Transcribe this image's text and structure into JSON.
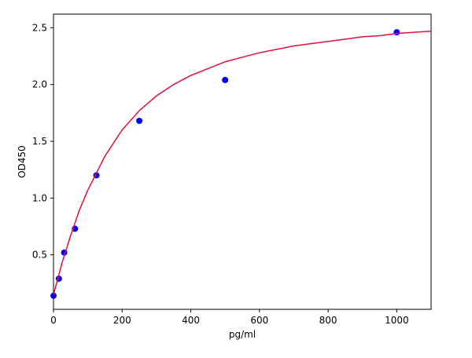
{
  "chart_data": {
    "type": "scatter",
    "title": "",
    "xlabel": "pg/ml",
    "ylabel": "OD450",
    "xlim": [
      0,
      1100
    ],
    "ylim": [
      0.02,
      2.62
    ],
    "x_ticks": [
      0,
      200,
      400,
      600,
      800,
      1000
    ],
    "x_tick_labels": [
      "0",
      "200",
      "400",
      "600",
      "800",
      "1000"
    ],
    "y_ticks": [
      0.5,
      1.0,
      1.5,
      2.0,
      2.5
    ],
    "y_tick_labels": [
      "0.5",
      "1.0",
      "1.5",
      "2.0",
      "2.5"
    ],
    "grid": false,
    "legend": "none",
    "series": [
      {
        "kind": "points",
        "color": "#0000ff",
        "x": [
          0,
          15.6,
          31.2,
          62.5,
          125,
          250,
          500,
          1000
        ],
        "y": [
          0.14,
          0.29,
          0.52,
          0.73,
          1.2,
          1.68,
          2.04,
          2.46
        ]
      },
      {
        "kind": "fit-curve",
        "color": "#e0103a",
        "x": [
          0,
          25,
          50,
          75,
          100,
          150,
          200,
          250,
          300,
          350,
          400,
          450,
          500,
          550,
          600,
          650,
          700,
          750,
          800,
          850,
          900,
          950,
          1000,
          1050,
          1100
        ],
        "y": [
          0.15,
          0.43,
          0.67,
          0.89,
          1.07,
          1.37,
          1.6,
          1.77,
          1.9,
          2.0,
          2.08,
          2.14,
          2.2,
          2.24,
          2.28,
          2.31,
          2.34,
          2.36,
          2.38,
          2.4,
          2.42,
          2.43,
          2.45,
          2.46,
          2.47
        ]
      }
    ]
  }
}
